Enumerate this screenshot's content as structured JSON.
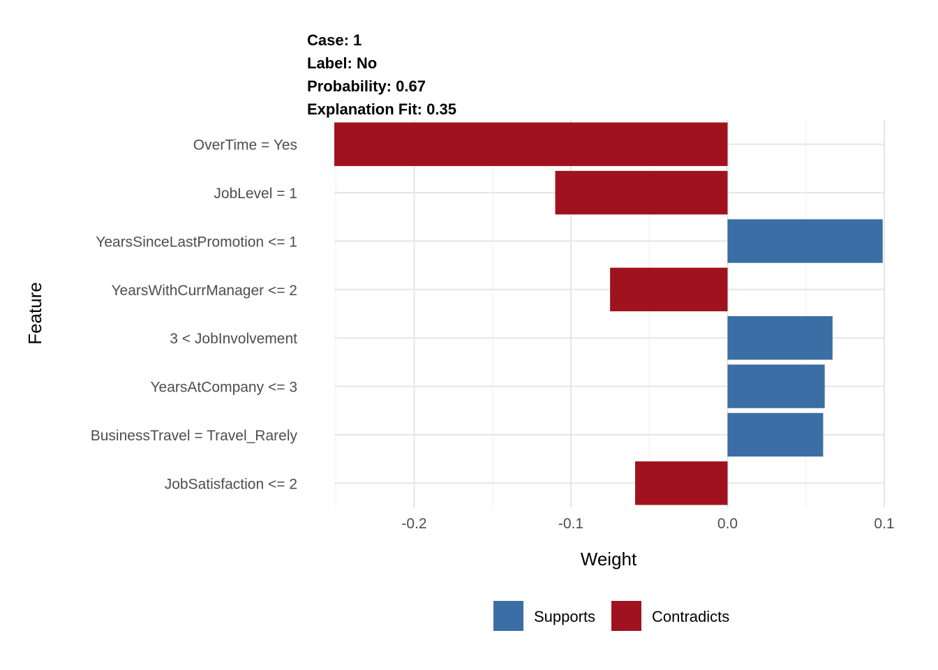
{
  "header": {
    "case": "Case: 1",
    "label": "Label: No",
    "probability": "Probability: 0.67",
    "fit": "Explanation Fit: 0.35"
  },
  "chart_data": {
    "type": "bar",
    "orientation": "horizontal",
    "categories": [
      "OverTime = Yes",
      "JobLevel = 1",
      "YearsSinceLastPromotion <= 1",
      "YearsWithCurrManager <= 2",
      "3 < JobInvolvement",
      "YearsAtCompany <= 3",
      "BusinessTravel = Travel_Rarely",
      "JobSatisfaction <= 2"
    ],
    "values": [
      -0.251,
      -0.11,
      0.099,
      -0.075,
      0.067,
      0.062,
      0.061,
      -0.059
    ],
    "xlabel": "Weight",
    "ylabel": "Feature",
    "xlim": [
      -0.251,
      0.1
    ],
    "xticks": [
      {
        "value": -0.2,
        "label": "-0.2"
      },
      {
        "value": -0.1,
        "label": "-0.1"
      },
      {
        "value": 0.0,
        "label": "0.0"
      },
      {
        "value": 0.1,
        "label": "0.1"
      }
    ],
    "legend": {
      "position": "bottom",
      "items": [
        {
          "label": "Supports",
          "color": "#3a6ea5"
        },
        {
          "label": "Contradicts",
          "color": "#a0121d"
        }
      ]
    },
    "colors": {
      "supports": "#3a6ea5",
      "contradicts": "#a0121d"
    },
    "grid": true
  }
}
